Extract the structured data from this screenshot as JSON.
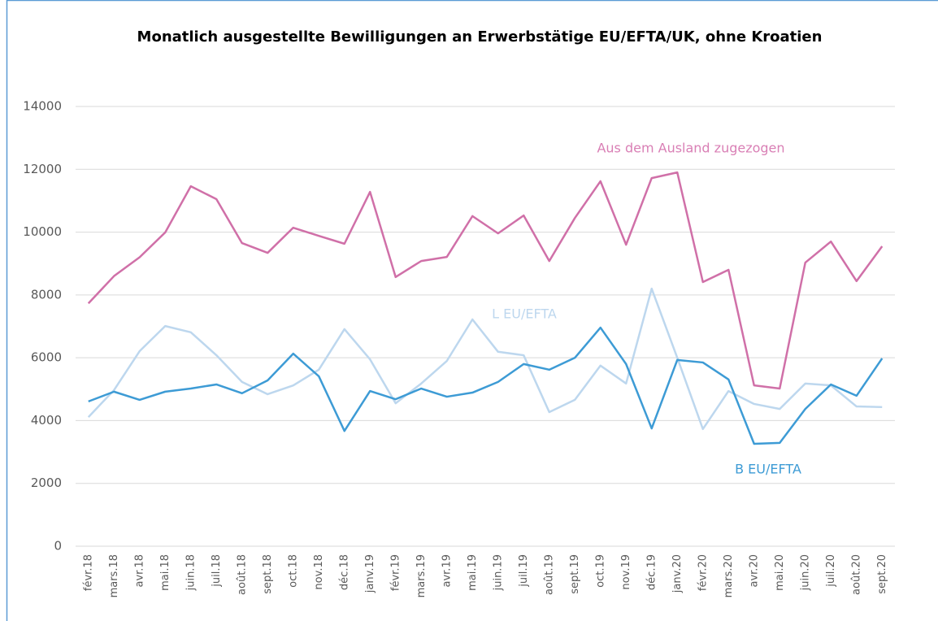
{
  "chart_data": {
    "type": "line",
    "title": "Monatlich ausgestellte Bewilligungen an Erwerbstätige EU/EFTA/UK, ohne Kroatien",
    "categories": [
      "févr.18",
      "mars.18",
      "avr.18",
      "mai.18",
      "juin.18",
      "juil.18",
      "août.18",
      "sept.18",
      "oct.18",
      "nov.18",
      "déc.18",
      "janv.19",
      "févr.19",
      "mars.19",
      "avr.19",
      "mai.19",
      "juin.19",
      "juil.19",
      "août.19",
      "sept.19",
      "oct.19",
      "nov.19",
      "déc.19",
      "janv.20",
      "févr.20",
      "mars.20",
      "avr.20",
      "mai.20",
      "juin.20",
      "juil.20",
      "août.20",
      "sept.20"
    ],
    "series": [
      {
        "name": "Aus dem Ausland zugezogen",
        "color": "#d070a8",
        "label_color": "#d97fb5",
        "values": [
          7730,
          8600,
          9200,
          9990,
          11460,
          11050,
          9650,
          9340,
          10140,
          9880,
          9630,
          11280,
          8570,
          9080,
          9210,
          10510,
          9960,
          10530,
          9080,
          10450,
          11620,
          9600,
          11720,
          11900,
          8410,
          8800,
          5120,
          5020,
          9030,
          9700,
          8440,
          9550
        ]
      },
      {
        "name": "L EU/EFTA",
        "color": "#bdd7ee",
        "label_color": "#bdd7ee",
        "values": [
          4110,
          4970,
          6210,
          7010,
          6810,
          6080,
          5230,
          4840,
          5120,
          5620,
          6910,
          5950,
          4550,
          5180,
          5900,
          7220,
          6190,
          6080,
          4270,
          4660,
          5750,
          5180,
          8200,
          6000,
          3730,
          4940,
          4530,
          4370,
          5180,
          5120,
          4450,
          4430
        ]
      },
      {
        "name": "B EU/EFTA",
        "color": "#3d9bd5",
        "label_color": "#3d9bd5",
        "values": [
          4610,
          4920,
          4660,
          4920,
          5020,
          5150,
          4870,
          5280,
          6130,
          5410,
          3670,
          4940,
          4680,
          5020,
          4760,
          4890,
          5230,
          5800,
          5620,
          6000,
          6960,
          5800,
          3750,
          5930,
          5850,
          5310,
          3260,
          3290,
          4370,
          5150,
          4790,
          5980
        ]
      }
    ],
    "ylim": [
      0,
      14000
    ],
    "yticks": [
      0,
      2000,
      4000,
      6000,
      8000,
      10000,
      12000,
      14000
    ],
    "grid": true
  }
}
